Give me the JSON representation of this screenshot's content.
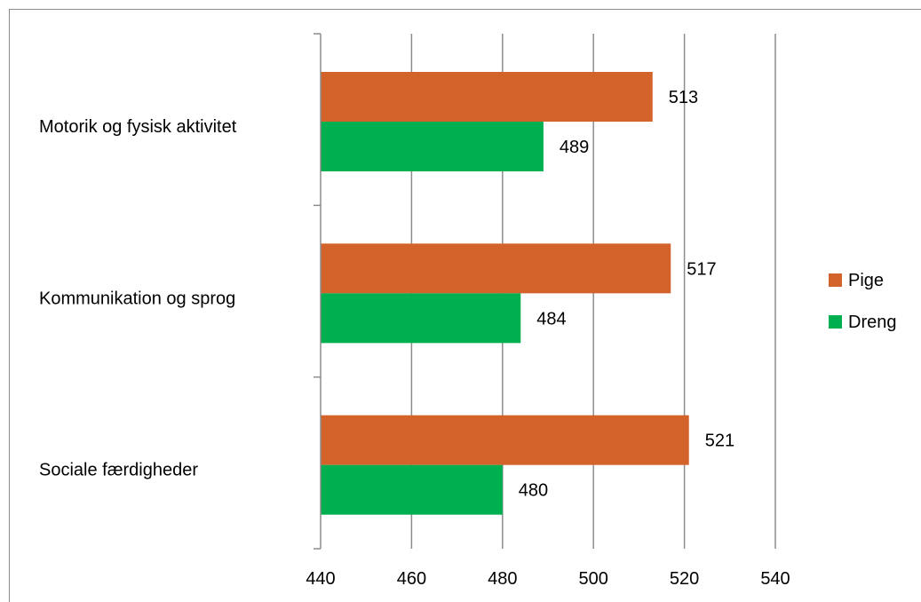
{
  "chart_data": {
    "type": "bar",
    "orientation": "horizontal",
    "categories": [
      "Motorik og fysisk aktivitet",
      "Kommunikation og sprog",
      "Sociale færdigheder"
    ],
    "series": [
      {
        "name": "Pige",
        "values": [
          513,
          517,
          521
        ],
        "color": "#d4622b"
      },
      {
        "name": "Dreng",
        "values": [
          489,
          484,
          480
        ],
        "color": "#00b050"
      }
    ],
    "xlim": [
      440,
      540
    ],
    "xticks": [
      440,
      460,
      480,
      500,
      520,
      540
    ],
    "grid": true,
    "legend_position": "right",
    "data_labels": true
  }
}
